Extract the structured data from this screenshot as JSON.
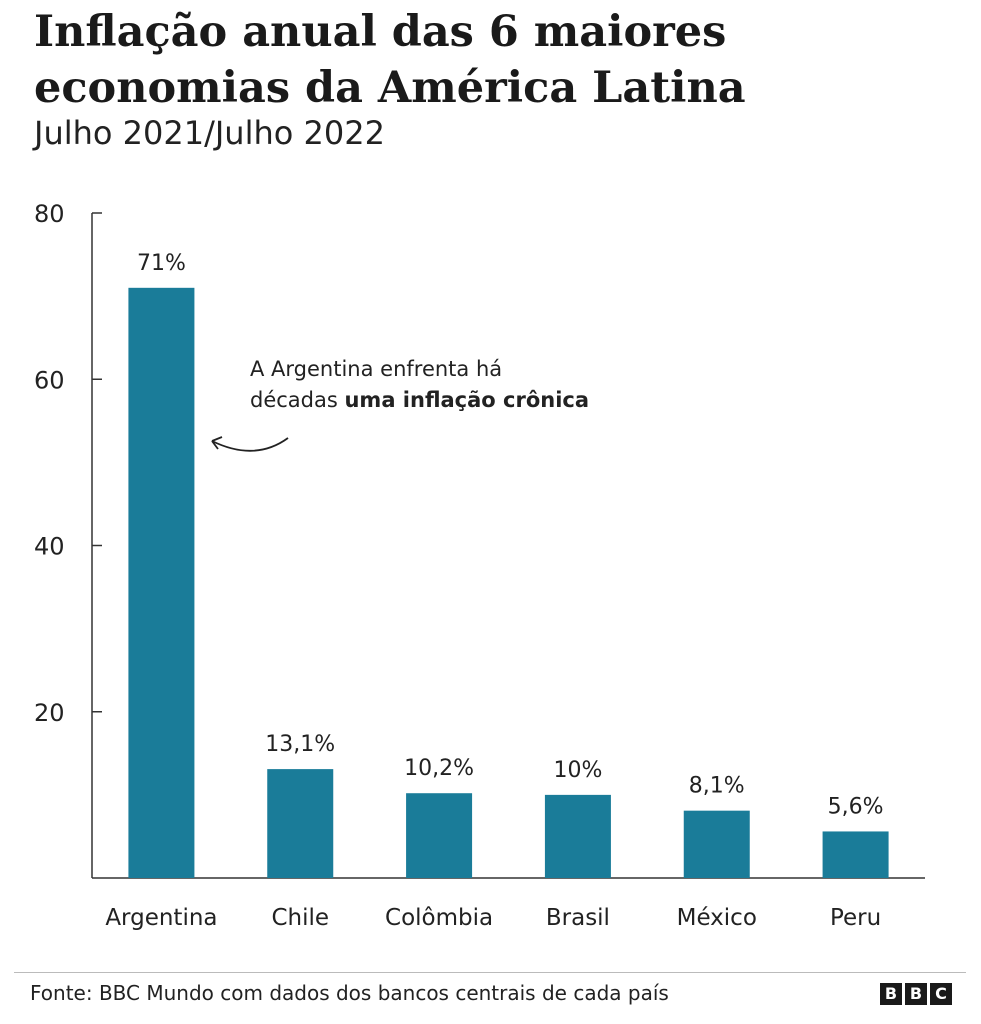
{
  "chart_data": {
    "type": "bar",
    "title": "Inflação anual das 6 maiores economias da América Latina",
    "subtitle": "Julho 2021/Julho 2022",
    "categories": [
      "Argentina",
      "Chile",
      "Colômbia",
      "Brasil",
      "México",
      "Peru"
    ],
    "values": [
      71,
      13.1,
      10.2,
      10,
      8.1,
      5.6
    ],
    "value_labels": [
      "71%",
      "13,1%",
      "10,2%",
      "10%",
      "8,1%",
      "5,6%"
    ],
    "yticks": [
      20,
      40,
      60,
      80
    ],
    "ylim": [
      0,
      80
    ],
    "xlabel": "",
    "ylabel": "",
    "grid": false,
    "bar_color": "#1a7c99",
    "annotation": {
      "text_line1": "A Argentina enfrenta há",
      "text_line2_normal": "décadas ",
      "text_line2_bold": "uma inflação crônica",
      "target_category": "Argentina"
    }
  },
  "footer": {
    "source": "Fonte: BBC Mundo com dados dos bancos centrais de cada país",
    "logo_letters": [
      "B",
      "B",
      "C"
    ]
  }
}
